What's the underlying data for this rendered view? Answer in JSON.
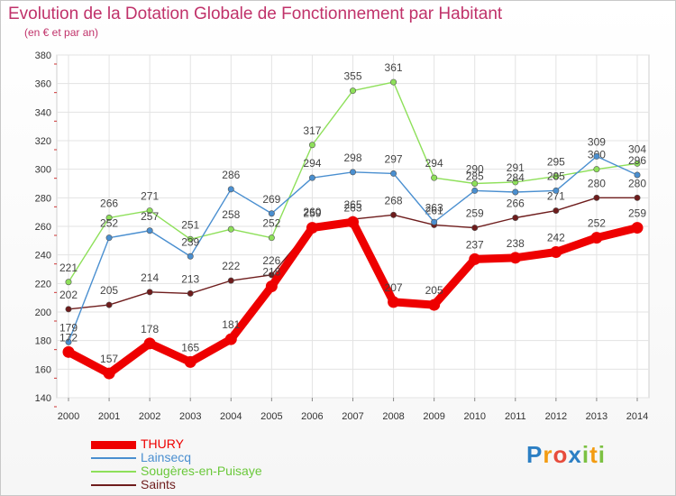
{
  "title": "Evolution de la Dotation Globale de Fonctionnement par Habitant",
  "subtitle": "(en € et par an)",
  "logo": {
    "letters": [
      {
        "ch": "P",
        "color": "#2c7fc4"
      },
      {
        "ch": "r",
        "color": "#f39c12"
      },
      {
        "ch": "o",
        "color": "#e74c3c"
      },
      {
        "ch": "x",
        "color": "#2c7fc4"
      },
      {
        "ch": "i",
        "color": "#7cc142"
      },
      {
        "ch": "t",
        "color": "#f39c12"
      },
      {
        "ch": "i",
        "color": "#7cc142"
      }
    ]
  },
  "chart_data": {
    "type": "line",
    "title": "Evolution de la Dotation Globale de Fonctionnement par Habitant",
    "subtitle": "(en € et par an)",
    "x": [
      "2000",
      "2001",
      "2002",
      "2003",
      "2004",
      "2005",
      "2006",
      "2007",
      "2008",
      "2009",
      "2010",
      "2011",
      "2012",
      "2013",
      "2014"
    ],
    "ylim": [
      140,
      380
    ],
    "yticks": [
      140,
      160,
      180,
      200,
      220,
      240,
      260,
      280,
      300,
      320,
      340,
      360,
      380
    ],
    "grid": true,
    "legend_position": "bottom-left",
    "series": [
      {
        "name": "THURY",
        "color": "#ee0000",
        "values": [
          172,
          157,
          178,
          165,
          181,
          218,
          259,
          263,
          207,
          205,
          237,
          238,
          242,
          252,
          259
        ]
      },
      {
        "name": "Lainsecq",
        "color": "#4a8fd0",
        "values": [
          179,
          252,
          257,
          239,
          286,
          269,
          294,
          298,
          297,
          263,
          285,
          284,
          285,
          309,
          296
        ]
      },
      {
        "name": "Sougères-en-Puisaye",
        "color": "#8ee05a",
        "values": [
          221,
          266,
          271,
          251,
          258,
          252,
          317,
          355,
          361,
          294,
          290,
          291,
          295,
          300,
          304
        ]
      },
      {
        "name": "Saints",
        "color": "#6e1c1c",
        "values": [
          202,
          205,
          214,
          213,
          222,
          226,
          260,
          265,
          268,
          261,
          259,
          266,
          271,
          280,
          280
        ]
      }
    ]
  }
}
